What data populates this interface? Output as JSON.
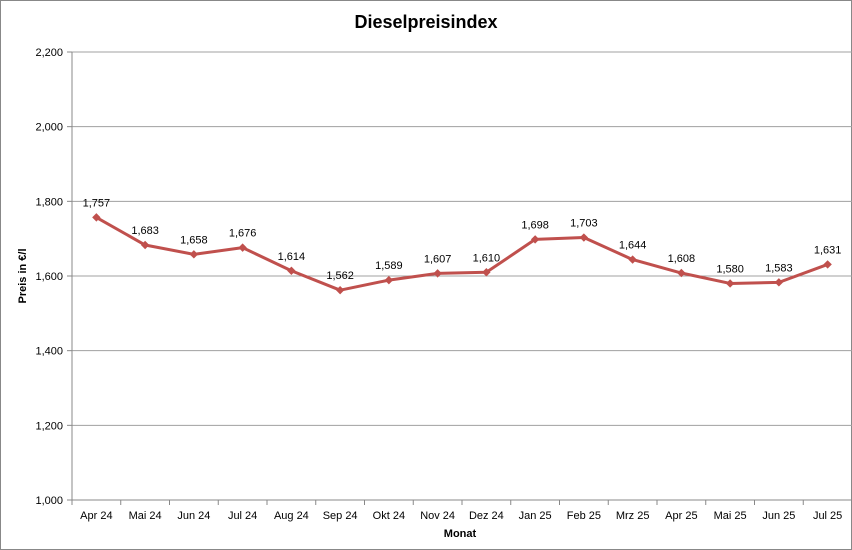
{
  "chart_data": {
    "type": "line",
    "title": "Dieselpreisindex",
    "xlabel": "Monat",
    "ylabel": "Preis in €/l",
    "categories": [
      "Apr 24",
      "Mai 24",
      "Jun 24",
      "Jul 24",
      "Aug 24",
      "Sep 24",
      "Okt 24",
      "Nov 24",
      "Dez 24",
      "Jan 25",
      "Feb 25",
      "Mrz 25",
      "Apr 25",
      "Mai 25",
      "Jun 25",
      "Jul 25"
    ],
    "values": [
      1.757,
      1.683,
      1.658,
      1.676,
      1.614,
      1.562,
      1.589,
      1.607,
      1.61,
      1.698,
      1.703,
      1.644,
      1.608,
      1.58,
      1.583,
      1.631
    ],
    "data_labels": [
      "1,757",
      "1,683",
      "1,658",
      "1,676",
      "1,614",
      "1,562",
      "1,589",
      "1,607",
      "1,610",
      "1,698",
      "1,703",
      "1,644",
      "1,608",
      "1,580",
      "1,583",
      "1,631"
    ],
    "ylim": [
      1.0,
      2.2
    ],
    "yticks": [
      1.0,
      1.2,
      1.4,
      1.6,
      1.8,
      2.0,
      2.2
    ],
    "ytick_labels": [
      "1,000",
      "1,200",
      "1,400",
      "1,600",
      "1,800",
      "2,000",
      "2,200"
    ],
    "grid": true,
    "legend": "none",
    "series_color": "#C0504D",
    "grid_color": "#A0A0A0"
  }
}
